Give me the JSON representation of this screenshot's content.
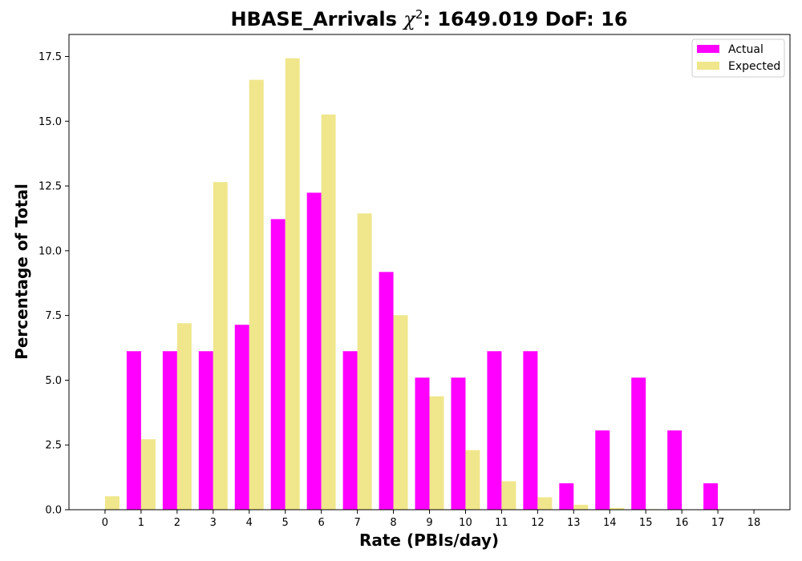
{
  "chart_data": {
    "type": "bar",
    "title": {
      "prefix": "HBASE_Arrivals ",
      "chi": "χ",
      "sup": "2",
      "suffix": ": 1649.019 DoF: 16"
    },
    "xlabel": "Rate (PBIs/day)",
    "ylabel": "Percentage of Total",
    "categories": [
      "0",
      "1",
      "2",
      "3",
      "4",
      "5",
      "6",
      "7",
      "8",
      "9",
      "10",
      "11",
      "12",
      "13",
      "14",
      "15",
      "16",
      "17",
      "18"
    ],
    "xlim": [
      -1,
      19
    ],
    "ylim": [
      0,
      18.35
    ],
    "yticks": [
      0.0,
      2.5,
      5.0,
      7.5,
      10.0,
      12.5,
      15.0,
      17.5
    ],
    "ytick_labels": [
      "0.0",
      "2.5",
      "5.0",
      "7.5",
      "10.0",
      "12.5",
      "15.0",
      "17.5"
    ],
    "grid": false,
    "legend_position": "top-right",
    "series": [
      {
        "name": "Actual",
        "color": "#ff00ff",
        "values": [
          0,
          6.12,
          6.12,
          6.12,
          7.14,
          11.22,
          12.24,
          6.12,
          9.18,
          5.1,
          5.1,
          6.12,
          6.12,
          1.02,
          3.06,
          5.1,
          3.06,
          1.02,
          0
        ]
      },
      {
        "name": "Expected",
        "color": "#f0e68c",
        "values": [
          0.52,
          2.72,
          7.2,
          12.65,
          16.6,
          17.43,
          15.26,
          11.44,
          7.51,
          4.38,
          2.3,
          1.1,
          0.48,
          0.19,
          0.07,
          0.02,
          0.01,
          0,
          0
        ]
      }
    ]
  }
}
